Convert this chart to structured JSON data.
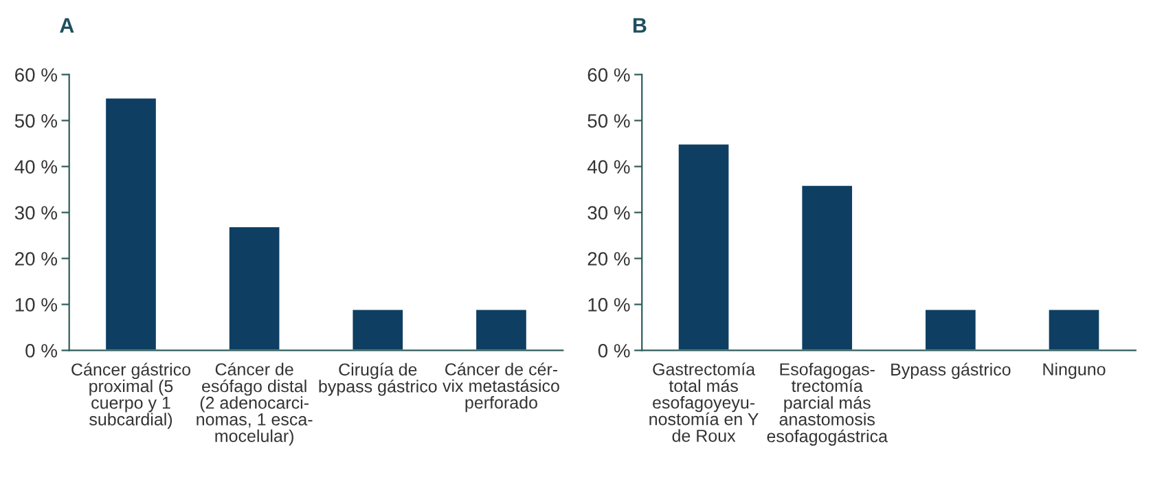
{
  "chart_data": [
    {
      "type": "bar",
      "title": "A",
      "categories": [
        "Cáncer gástrico\nproximal (5\ncuerpo y 1\nsubcardial)",
        "Cáncer de\nesófago distal\n(2 adenocarci-\nnomas, 1 esca-\nmocelular)",
        "Cirugía de\nbypass gástrico",
        "Cáncer de cér-\nvix metastásico\nperforado"
      ],
      "values": [
        55,
        27,
        9,
        9
      ],
      "color": "#0e3f62",
      "ylim": [
        0,
        60
      ],
      "yticks": [
        {
          "value": 0,
          "label": "0 %"
        },
        {
          "value": 10,
          "label": "10 %"
        },
        {
          "value": 20,
          "label": "20 %"
        },
        {
          "value": 30,
          "label": "30 %"
        },
        {
          "value": 40,
          "label": "40 %"
        },
        {
          "value": 50,
          "label": "50 %"
        },
        {
          "value": 60,
          "label": "60 %"
        }
      ],
      "grid": false,
      "legend": false
    },
    {
      "type": "bar",
      "title": "B",
      "categories": [
        "Gastrectomía\ntotal más\nesofagoyeyu-\nnostomía en Y\nde Roux",
        "Esofagogas-\ntrectomía\nparcial más\nanastomosis\nesofagogástrica",
        "Bypass gástrico",
        "Ninguno"
      ],
      "values": [
        45,
        36,
        9,
        9
      ],
      "color": "#0e3f62",
      "ylim": [
        0,
        60
      ],
      "yticks": [
        {
          "value": 0,
          "label": "0 %"
        },
        {
          "value": 10,
          "label": "10 %"
        },
        {
          "value": 20,
          "label": "20 %"
        },
        {
          "value": 30,
          "label": "30 %"
        },
        {
          "value": 40,
          "label": "40 %"
        },
        {
          "value": 50,
          "label": "50 %"
        },
        {
          "value": 60,
          "label": "60 %"
        }
      ],
      "grid": false,
      "legend": false
    }
  ]
}
